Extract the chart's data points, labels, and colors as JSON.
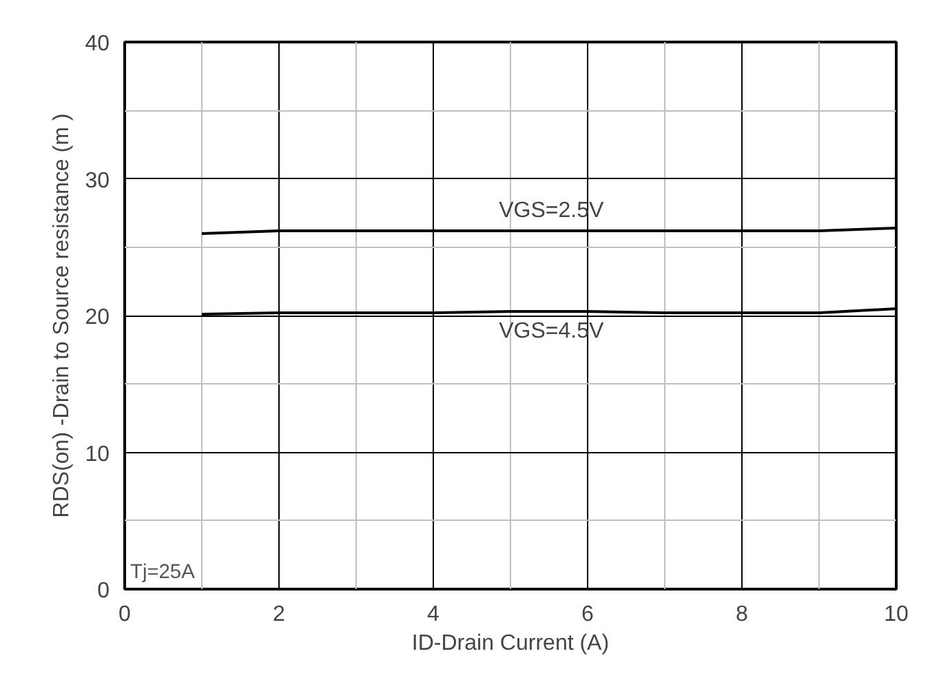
{
  "chart_data": {
    "type": "line",
    "xlabel": "ID-Drain Current (A)",
    "ylabel": "RDS(on) -Drain to Source resistance (m )",
    "x": [
      1,
      2,
      3,
      4,
      5,
      6,
      7,
      8,
      9,
      10
    ],
    "series": [
      {
        "name": "VGS=2.5V",
        "color": "#000000",
        "values": [
          26.0,
          26.2,
          26.2,
          26.2,
          26.2,
          26.2,
          26.2,
          26.2,
          26.2,
          26.4
        ]
      },
      {
        "name": "VGS=4.5V",
        "color": "#000000",
        "values": [
          20.1,
          20.2,
          20.2,
          20.2,
          20.3,
          20.3,
          20.2,
          20.2,
          20.2,
          20.5
        ]
      }
    ],
    "xlim": [
      0,
      10
    ],
    "ylim": [
      0,
      40
    ],
    "xticks": [
      0,
      {
        "value": 1,
        "label": null
      },
      2,
      {
        "value": 3,
        "label": null
      },
      4,
      {
        "value": 5,
        "label": null
      },
      6,
      {
        "value": 7,
        "label": null
      },
      8,
      {
        "value": 9,
        "label": null
      },
      10
    ],
    "yticks": [
      0,
      {
        "value": 5,
        "label": null
      },
      10,
      {
        "value": 15,
        "label": null
      },
      20,
      {
        "value": 25,
        "label": null
      },
      30,
      {
        "value": 35,
        "label": null
      },
      40
    ],
    "annotations": [
      "Tj=25A"
    ],
    "grid": true,
    "marker": "none",
    "line_style": "solid",
    "legend": false
  }
}
